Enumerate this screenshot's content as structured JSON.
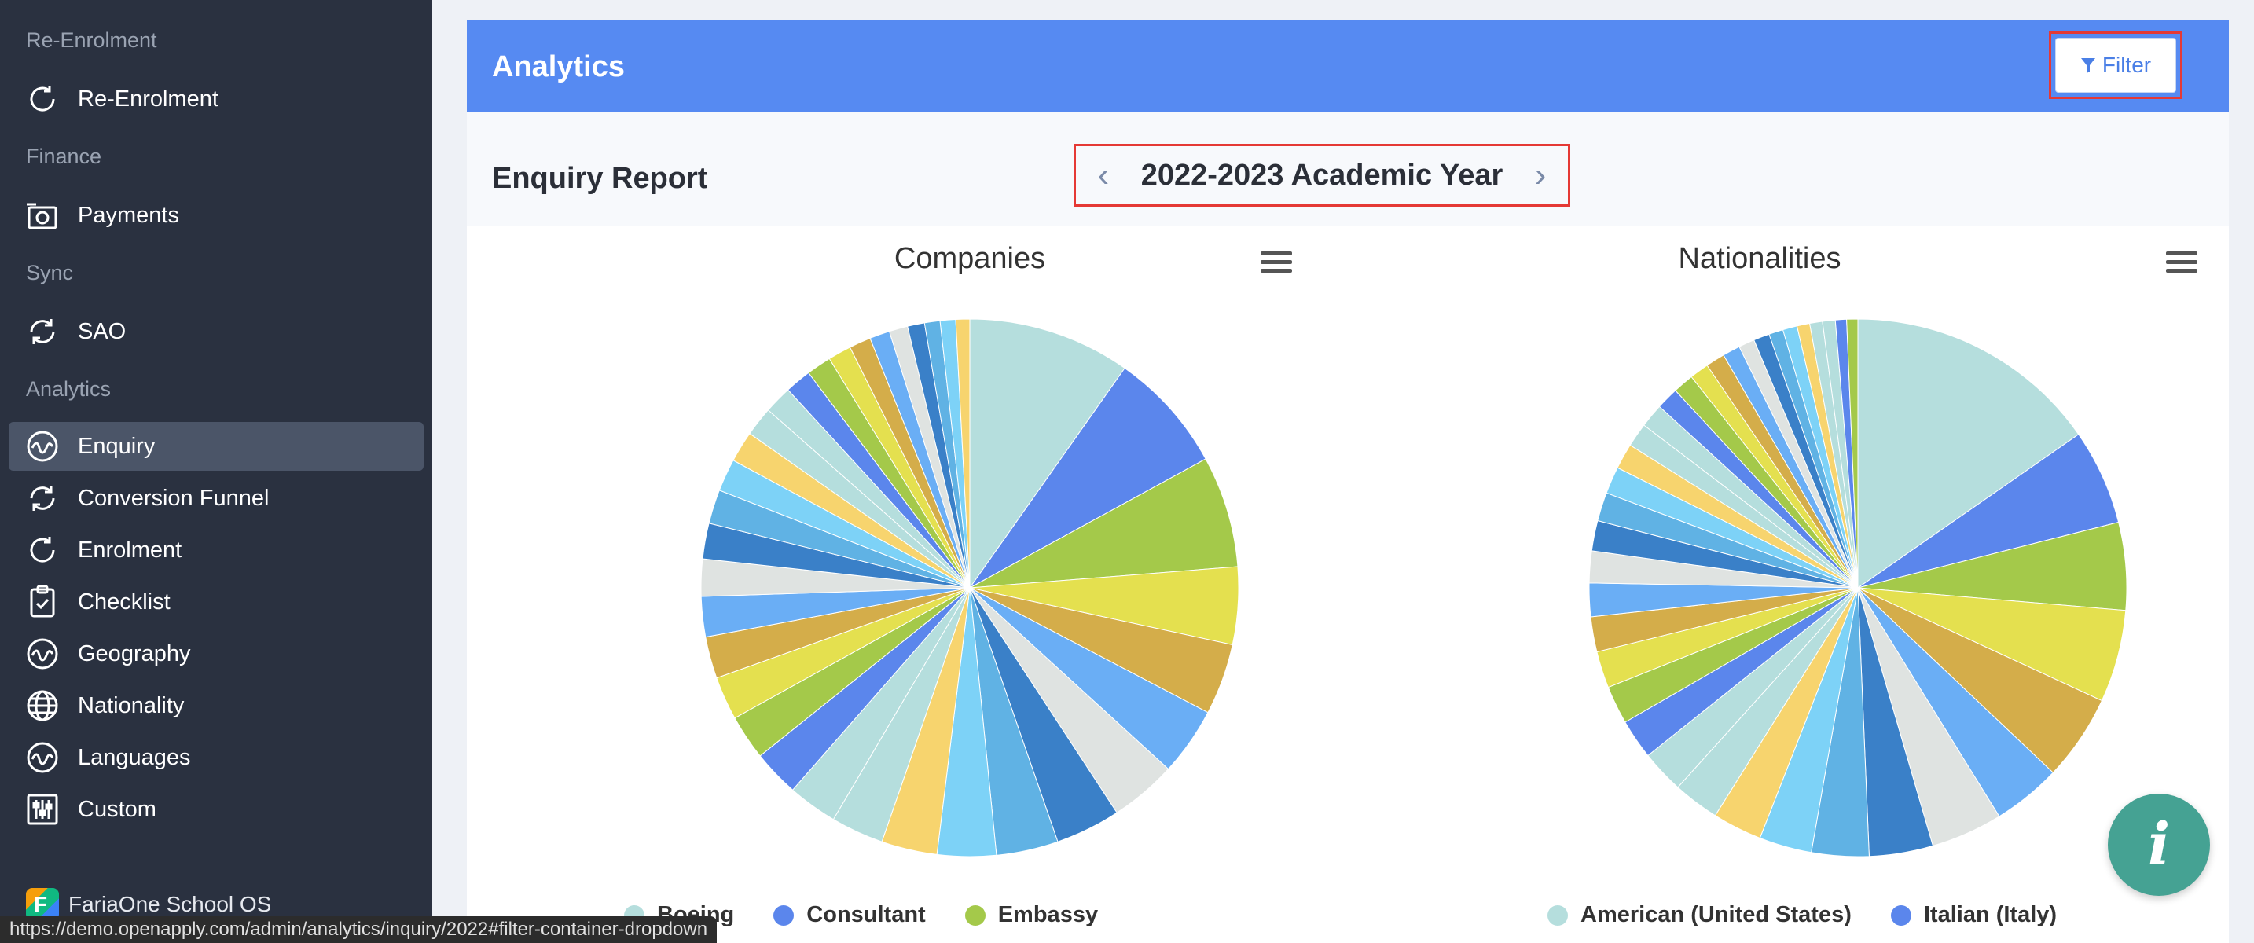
{
  "sidebar": {
    "sections": [
      {
        "label": "Re-Enrolment",
        "items": [
          {
            "label": "Re-Enrolment",
            "icon": "refresh-icon"
          }
        ]
      },
      {
        "label": "Finance",
        "items": [
          {
            "label": "Payments",
            "icon": "camera-icon"
          }
        ]
      },
      {
        "label": "Sync",
        "items": [
          {
            "label": "SAO",
            "icon": "refresh-icon"
          }
        ]
      },
      {
        "label": "Analytics",
        "items": [
          {
            "label": "Enquiry",
            "icon": "wave-icon",
            "active": true
          },
          {
            "label": "Conversion Funnel",
            "icon": "refresh-icon"
          },
          {
            "label": "Enrolment",
            "icon": "refresh-icon"
          },
          {
            "label": "Checklist",
            "icon": "clipboard-check-icon"
          },
          {
            "label": "Geography",
            "icon": "wave-icon"
          },
          {
            "label": "Nationality",
            "icon": "globe-icon"
          },
          {
            "label": "Languages",
            "icon": "wave-icon"
          },
          {
            "label": "Custom",
            "icon": "sliders-icon"
          }
        ]
      }
    ],
    "brand": "FariaOne School OS"
  },
  "header": {
    "title": "Analytics",
    "filter_label": "Filter"
  },
  "report": {
    "title": "Enquiry Report",
    "year": "2022-2023 Academic Year"
  },
  "charts": [
    {
      "title": "Companies",
      "legend": [
        "Boeing",
        "Consultant",
        "Embassy"
      ]
    },
    {
      "title": "Nationalities",
      "legend": [
        "American (United States)",
        "Italian (Italy)"
      ]
    }
  ],
  "status_url": "https://demo.openapply.com/admin/analytics/inquiry/2022#filter-container-dropdown",
  "colors": {
    "sidebar_bg": "#2a3140",
    "header_bg": "#568af2",
    "highlight": "#e53935",
    "fab": "#45a293",
    "palette": [
      "#b5dedd",
      "#5b86ec",
      "#a4c94a",
      "#e4e04f",
      "#d4ad4a",
      "#6aaef5",
      "#dfe3e1",
      "#3a80c8",
      "#60b2e4",
      "#7dd2f7",
      "#f7d46e",
      "#b5dedd"
    ]
  },
  "chart_data": [
    {
      "type": "pie",
      "title": "Companies",
      "legend": [
        "Boeing",
        "Consultant",
        "Embassy"
      ],
      "values": [
        10.5,
        7.8,
        7.2,
        5.0,
        4.6,
        4.4,
        4.3,
        4.2,
        4.0,
        3.8,
        3.6,
        3.4,
        3.2,
        3.0,
        2.9,
        2.8,
        2.7,
        2.6,
        2.4,
        2.3,
        2.2,
        2.1,
        2.0,
        1.9,
        1.8,
        1.7,
        1.6,
        1.5,
        1.4,
        1.3,
        1.2,
        1.1,
        1.0,
        1.0,
        0.9
      ]
    },
    {
      "type": "pie",
      "title": "Nationalities",
      "legend": [
        "American (United States)",
        "Italian (Italy)"
      ],
      "values": [
        16.0,
        6.0,
        5.5,
        5.8,
        5.4,
        4.3,
        4.5,
        4.0,
        3.6,
        3.3,
        3.1,
        2.9,
        2.7,
        2.5,
        2.4,
        2.3,
        2.2,
        2.1,
        2.0,
        1.9,
        1.8,
        1.7,
        1.6,
        1.5,
        1.5,
        1.4,
        1.3,
        1.2,
        1.2,
        1.1,
        1.0,
        1.0,
        0.9,
        0.9,
        0.8,
        0.8,
        0.8,
        0.7,
        0.7
      ]
    }
  ]
}
